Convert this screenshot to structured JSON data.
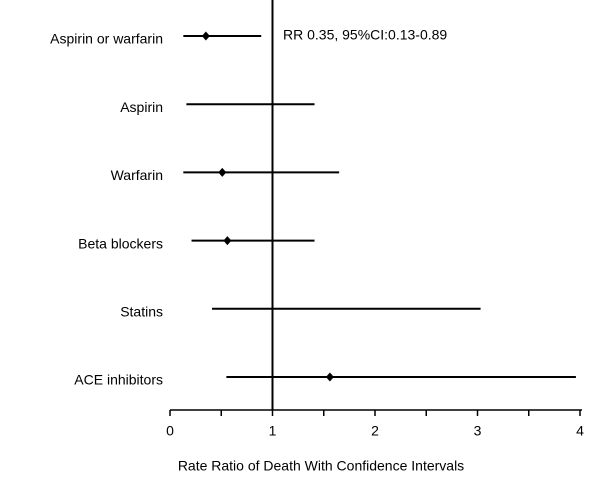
{
  "chart_data": {
    "type": "forest",
    "xlabel": "Rate Ratio of Death With Confidence Intervals",
    "annotation": "RR 0.35, 95%CI:0.13-0.89",
    "categories": [
      "Aspirin or warfarin",
      "Aspirin",
      "Warfarin",
      "Beta blockers",
      "Statins",
      "ACE inhibitors"
    ],
    "estimates": [
      0.35,
      null,
      0.51,
      0.56,
      null,
      1.56
    ],
    "lower": [
      0.13,
      0.16,
      0.13,
      0.21,
      0.41,
      0.55
    ],
    "upper": [
      0.89,
      1.41,
      1.65,
      1.41,
      3.03,
      3.96
    ],
    "color": "#000000",
    "reference": 1,
    "xlim": [
      0,
      4
    ],
    "xticks": [
      0,
      1,
      2,
      3,
      4
    ],
    "minor_xticks": [
      0.5,
      1.5,
      2.5,
      3.5
    ]
  }
}
